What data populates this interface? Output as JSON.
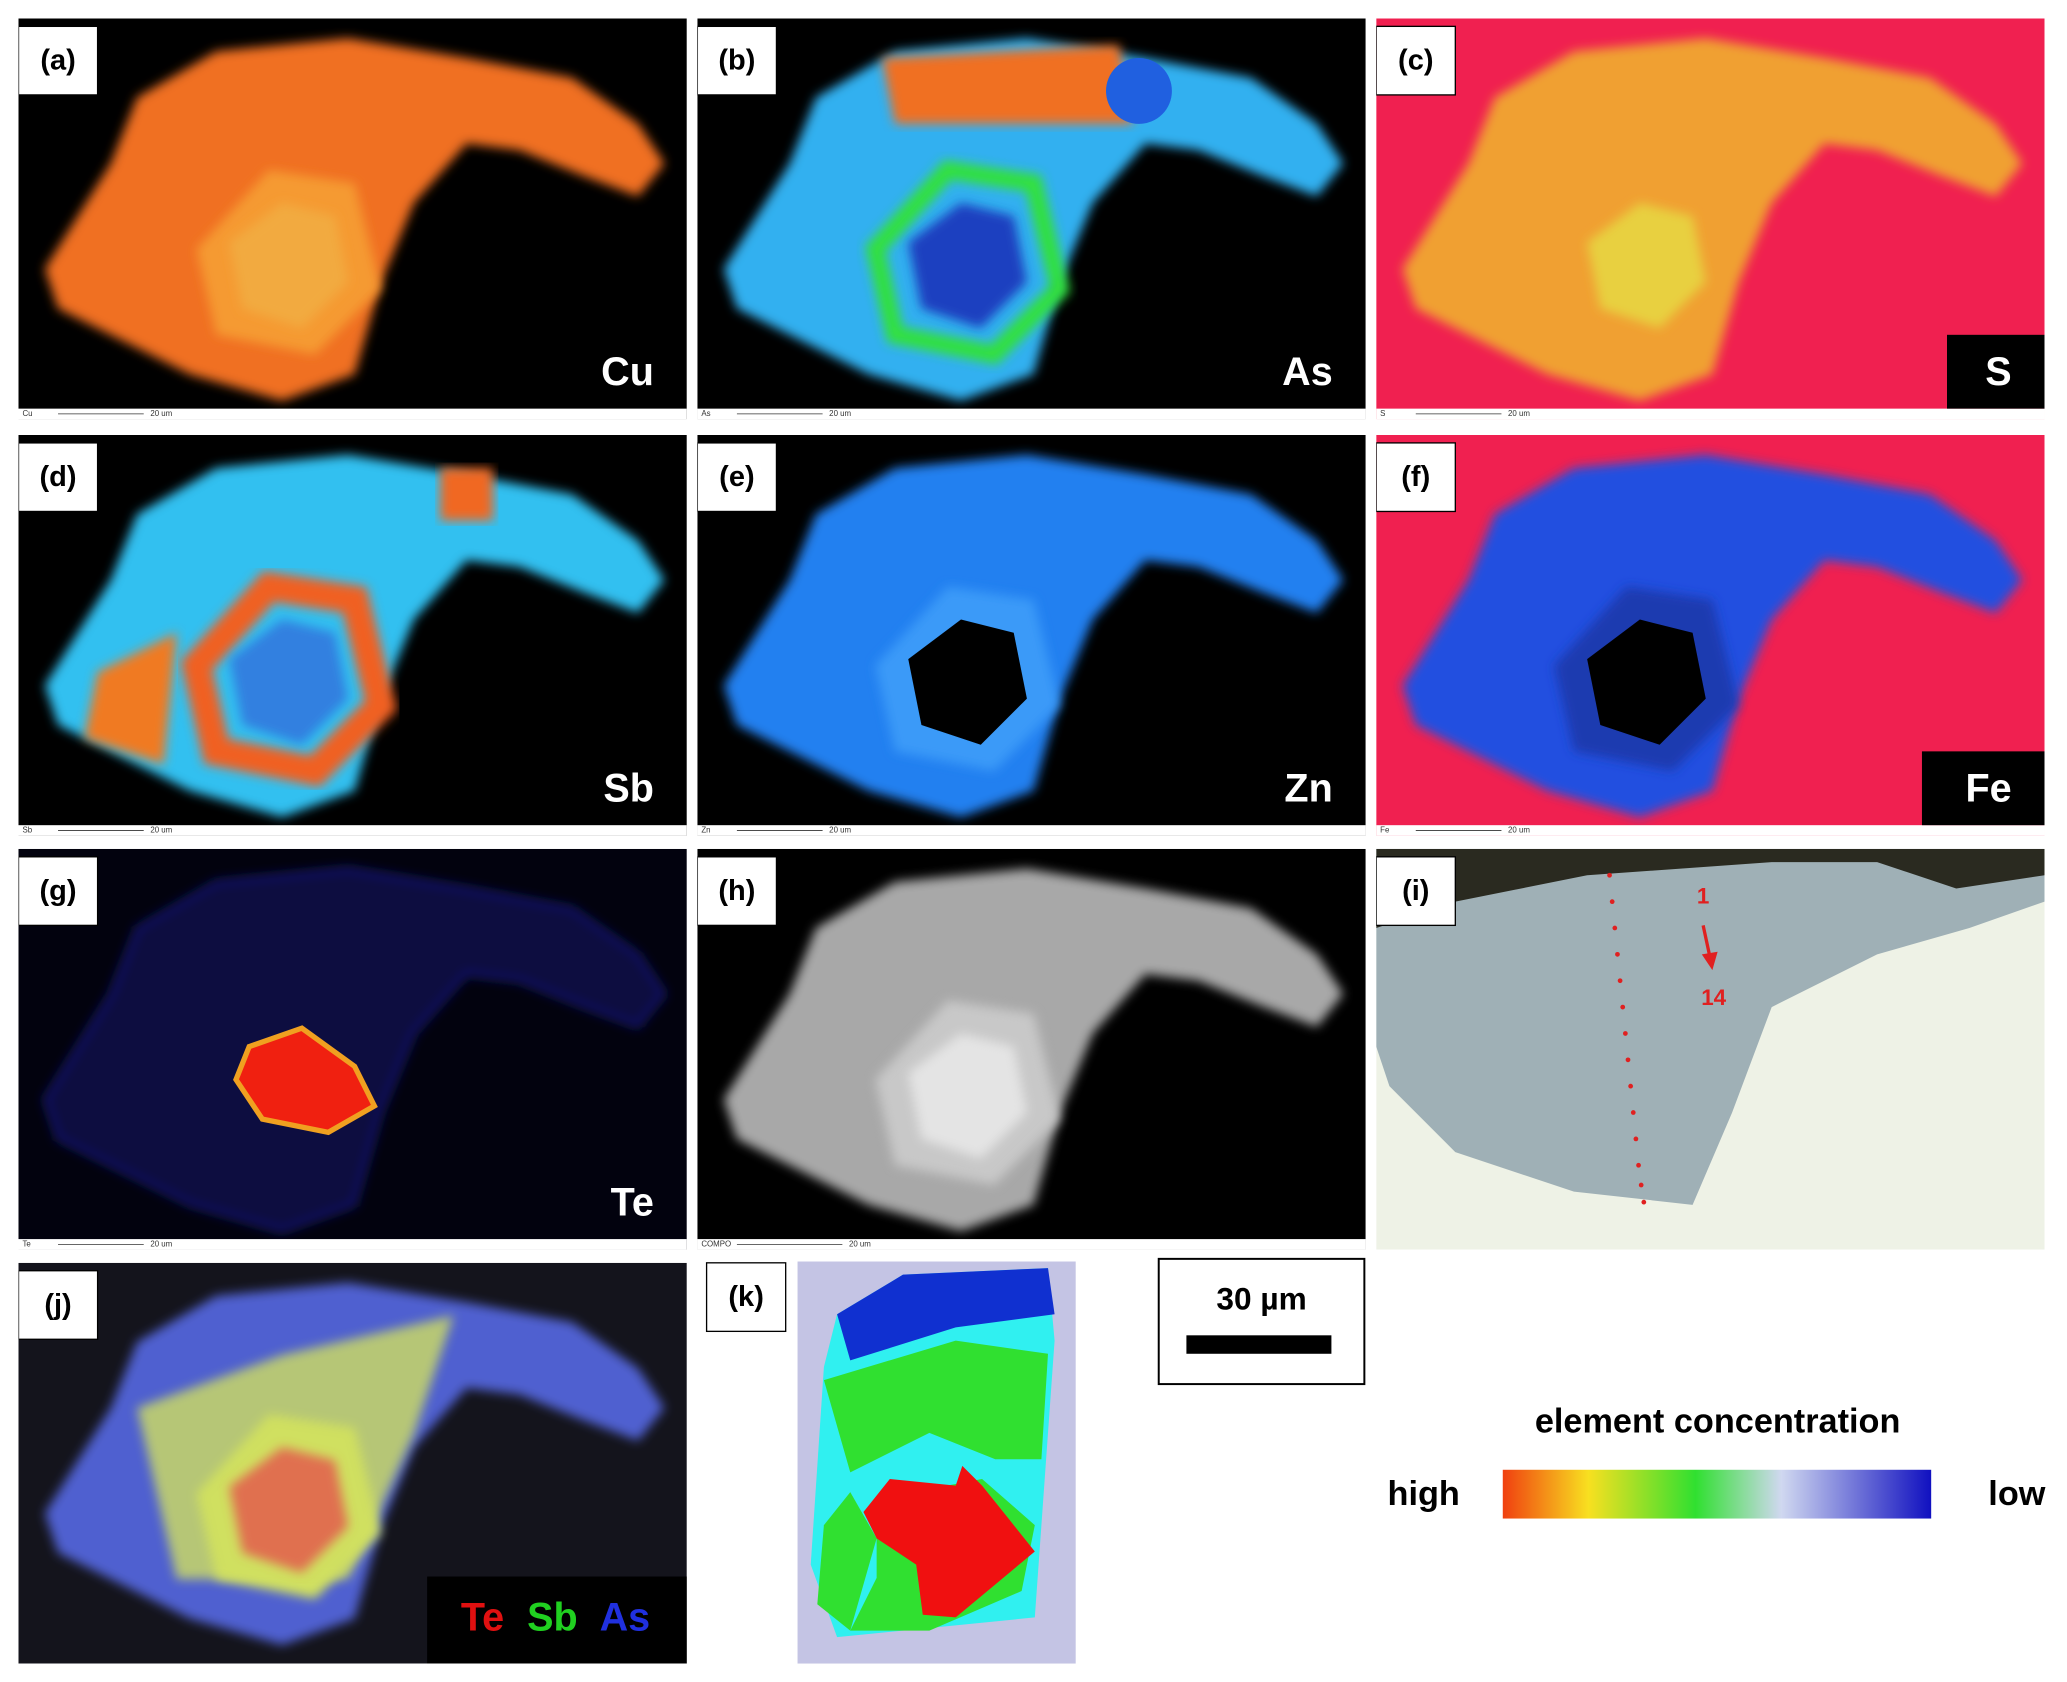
{
  "panels": [
    {
      "label": "(a)",
      "element": "Cu",
      "caption": "Cu",
      "scale": "20 um"
    },
    {
      "label": "(b)",
      "element": "As",
      "caption": "As",
      "scale": "20 um"
    },
    {
      "label": "(c)",
      "element": "S",
      "caption": "S",
      "scale": "20 um"
    },
    {
      "label": "(d)",
      "element": "Sb",
      "caption": "Sb",
      "scale": "20 um"
    },
    {
      "label": "(e)",
      "element": "Zn",
      "caption": "Zn",
      "scale": "20 um"
    },
    {
      "label": "(f)",
      "element": "Fe",
      "caption": "Fe",
      "scale": "20 um"
    },
    {
      "label": "(g)",
      "element": "Te",
      "caption": "Te",
      "scale": "20 um"
    },
    {
      "label": "(h)",
      "caption": "COMPO",
      "scale": "20 um"
    },
    {
      "label": "(i)",
      "start": "1",
      "end": "14"
    },
    {
      "label": "(j)",
      "channels": [
        "Te",
        "Sb",
        "As"
      ]
    },
    {
      "label": "(k)"
    }
  ],
  "scale_bar": "30 µm",
  "legend": {
    "title": "element concentration",
    "high": "high",
    "low": "low"
  }
}
